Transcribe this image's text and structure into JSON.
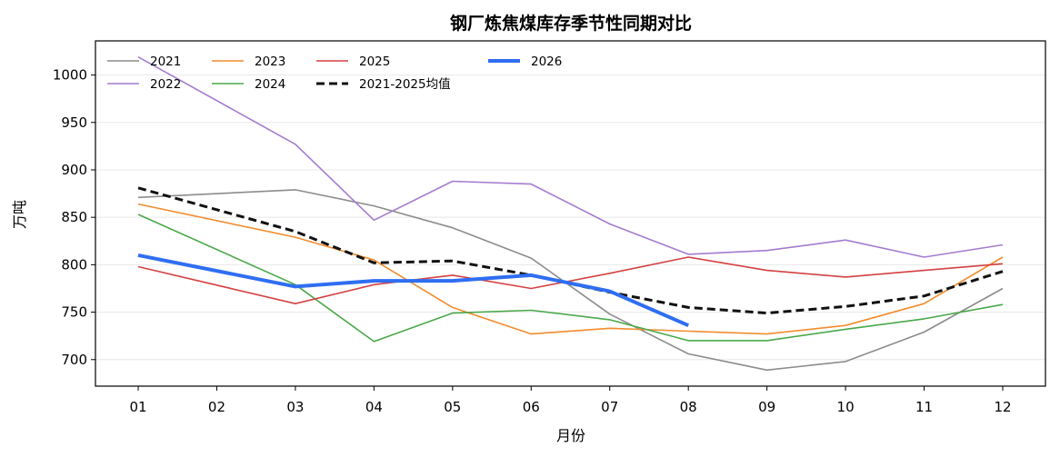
{
  "chart_data": {
    "type": "line",
    "title": "钢厂炼焦煤库存季节性同期对比",
    "xlabel": "月份",
    "ylabel": "万吨",
    "categories": [
      "01",
      "02",
      "03",
      "04",
      "05",
      "06",
      "07",
      "08",
      "09",
      "10",
      "11",
      "12"
    ],
    "yticks": [
      700,
      750,
      800,
      850,
      900,
      950,
      1000
    ],
    "ylim": [
      672,
      1036
    ],
    "grid": "horizontal",
    "legend_position": "top-left",
    "legend_columns": 4,
    "series": [
      {
        "name": "2021",
        "color": "#8c8c8c",
        "width": 1.6,
        "dashed": false,
        "values": [
          871,
          null,
          879,
          862,
          839,
          807,
          748,
          706,
          689,
          698,
          729,
          775
        ]
      },
      {
        "name": "2022",
        "color": "#a47ccf",
        "width": 1.6,
        "dashed": false,
        "values": [
          1019,
          null,
          927,
          847,
          888,
          885,
          843,
          811,
          815,
          826,
          808,
          821
        ]
      },
      {
        "name": "2023",
        "color": "#f38c2c",
        "width": 1.6,
        "dashed": false,
        "values": [
          864,
          null,
          829,
          805,
          755,
          727,
          733,
          730,
          727,
          736,
          759,
          808
        ]
      },
      {
        "name": "2024",
        "color": "#4aa84a",
        "width": 1.6,
        "dashed": false,
        "values": [
          853,
          null,
          779,
          719,
          749,
          752,
          742,
          720,
          720,
          732,
          743,
          758
        ]
      },
      {
        "name": "2025",
        "color": "#d44141",
        "width": 1.6,
        "dashed": false,
        "values": [
          798,
          null,
          759,
          779,
          789,
          775,
          791,
          808,
          794,
          787,
          794,
          801
        ]
      },
      {
        "name": "2021-2025均值",
        "color": "#111111",
        "width": 3,
        "dashed": true,
        "values": [
          881,
          null,
          835,
          802,
          804,
          789,
          771,
          755,
          749,
          756,
          767,
          793
        ]
      },
      {
        "name": "2026",
        "color": "#2f6ef2",
        "width": 4,
        "dashed": false,
        "values": [
          810,
          null,
          777,
          783,
          783,
          789,
          772,
          736,
          null,
          null,
          null,
          null
        ]
      }
    ],
    "legend_order": [
      "2021",
      "2022",
      "2023",
      "2024",
      "2025",
      "2021-2025均值",
      "2026"
    ]
  }
}
